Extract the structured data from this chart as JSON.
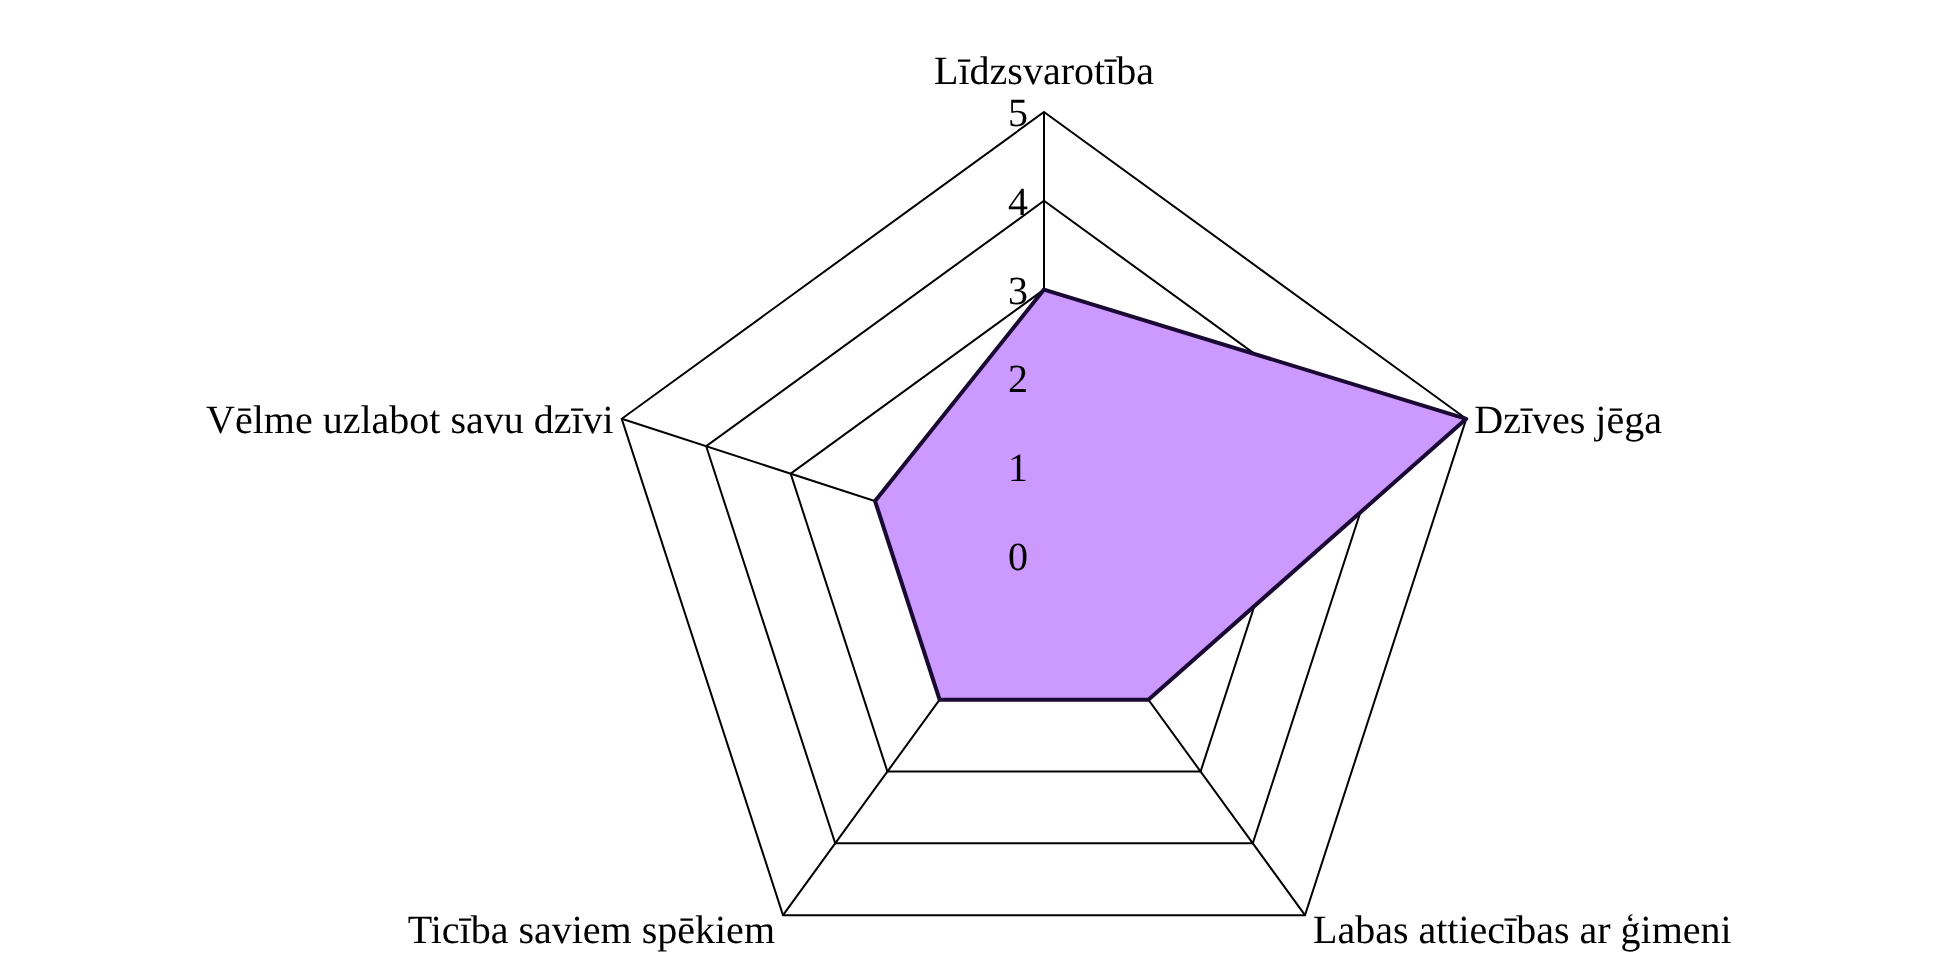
{
  "chart_data": {
    "type": "radar",
    "categories": [
      "Līdzsvarotība",
      "Dzīves jēga",
      "Labas attiecības ar ģimeni",
      "Ticība saviem spēkiem",
      "Vēlme uzlabot savu dzīvi"
    ],
    "series": [
      {
        "color": "#cc99ff",
        "values": [
          3,
          5,
          2,
          2,
          2
        ]
      }
    ],
    "ylim": [
      0,
      5
    ],
    "yticks": [
      0,
      1,
      2,
      3,
      4,
      5
    ],
    "grid": true
  }
}
